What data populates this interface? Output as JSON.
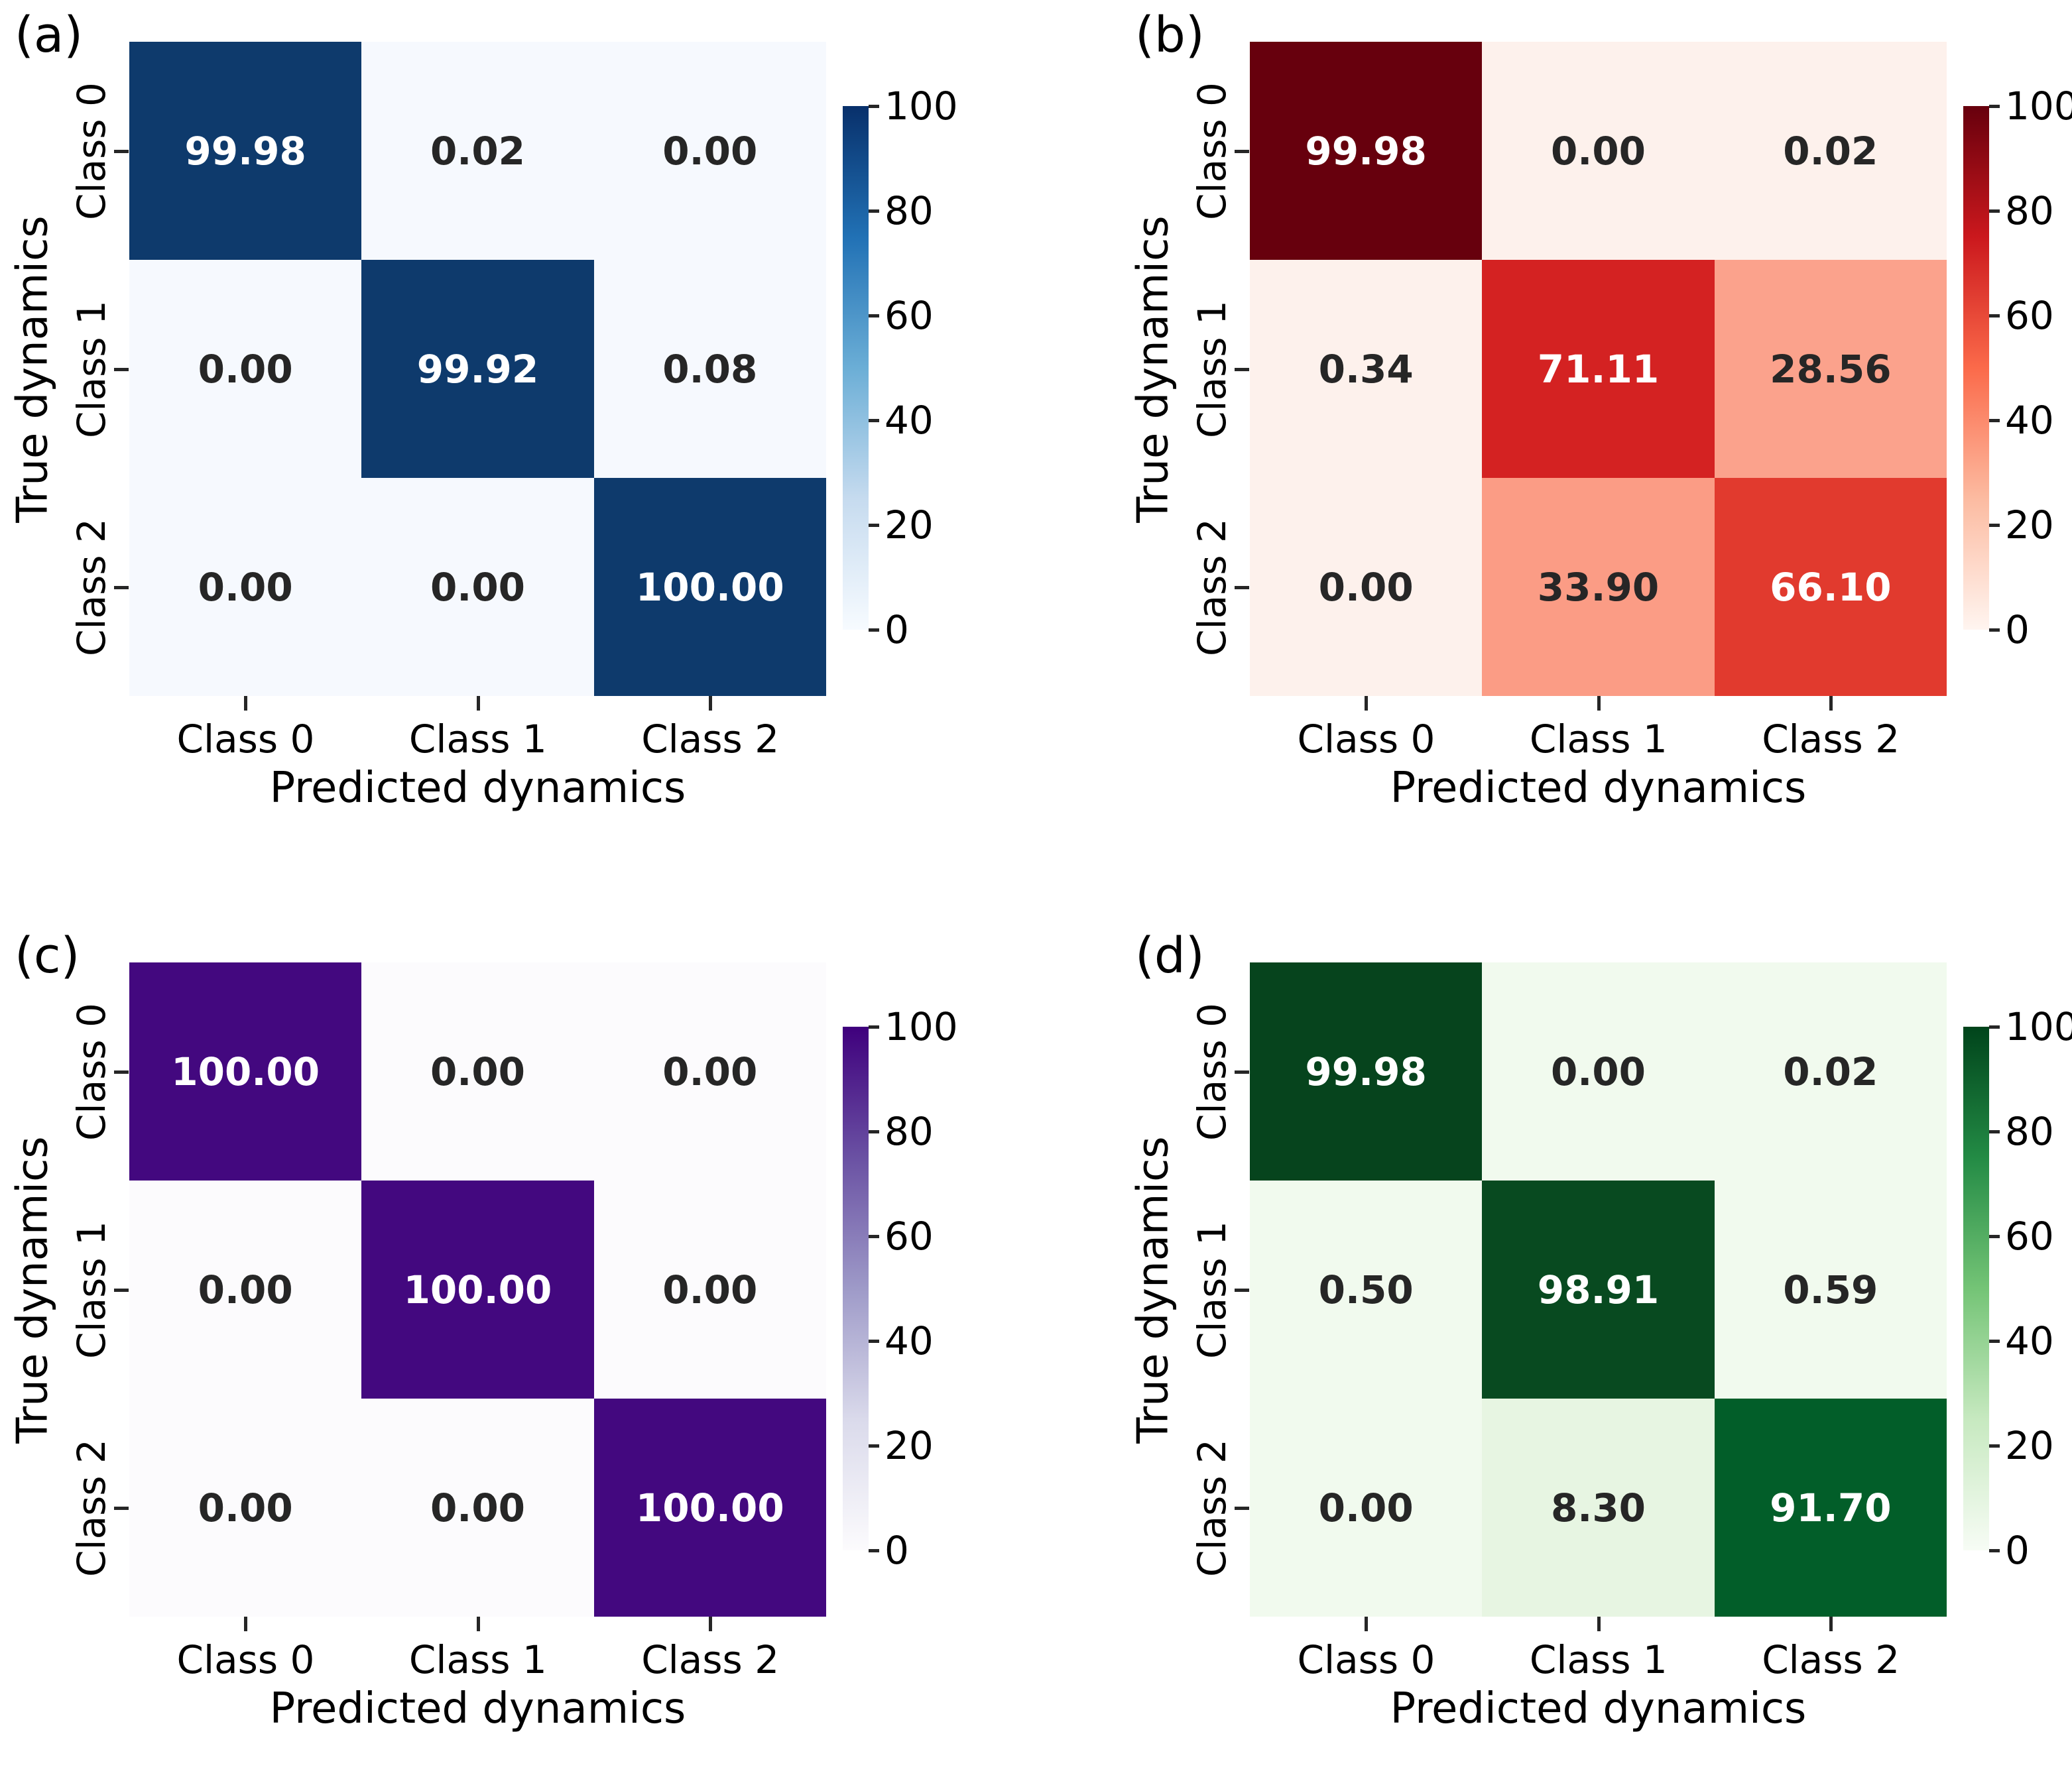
{
  "figure": {
    "background": "#ffffff",
    "text_color": "#000000",
    "dark_value_text": "#262626",
    "light_value_text": "#ffffff",
    "white_text_threshold": 60
  },
  "chart_data": [
    {
      "type": "heatmap",
      "panel_label": "(a)",
      "colormap": "Blues",
      "title": "",
      "xlabel": "Predicted dynamics",
      "ylabel": "True dynamics",
      "x_ticks": [
        "Class 0",
        "Class 1",
        "Class 2"
      ],
      "y_ticks": [
        "Class 0",
        "Class 1",
        "Class 2"
      ],
      "values": [
        [
          99.98,
          0.02,
          0.0
        ],
        [
          0.0,
          99.92,
          0.08
        ],
        [
          0.0,
          0.0,
          100.0
        ]
      ],
      "cell_colors": [
        [
          "#0e3a6c",
          "#f6f9fe",
          "#f6f9fe"
        ],
        [
          "#f6f9fe",
          "#0e3a6c",
          "#f6f9fe"
        ],
        [
          "#f6f9fe",
          "#f6f9fe",
          "#0e3a6c"
        ]
      ],
      "colorbar": {
        "ticks": [
          "100",
          "80",
          "60",
          "40",
          "20",
          "0"
        ],
        "range": [
          0,
          100
        ],
        "gradient_top_to_bottom": [
          "#08306b",
          "#2171b5",
          "#6baed6",
          "#c6dbef",
          "#f7fbff"
        ]
      }
    },
    {
      "type": "heatmap",
      "panel_label": "(b)",
      "colormap": "Reds",
      "title": "",
      "xlabel": "Predicted dynamics",
      "ylabel": "True dynamics",
      "x_ticks": [
        "Class 0",
        "Class 1",
        "Class 2"
      ],
      "y_ticks": [
        "Class 0",
        "Class 1",
        "Class 2"
      ],
      "values": [
        [
          99.98,
          0.0,
          0.02
        ],
        [
          0.34,
          71.11,
          28.56
        ],
        [
          0.0,
          33.9,
          66.1
        ]
      ],
      "cell_colors": [
        [
          "#67000d",
          "#fdf1ec",
          "#fdf1ec"
        ],
        [
          "#fdf1ec",
          "#d42222",
          "#fba28c"
        ],
        [
          "#fdf1ec",
          "#fb9c85",
          "#e13a2e"
        ]
      ],
      "colorbar": {
        "ticks": [
          "100",
          "80",
          "60",
          "40",
          "20",
          "0"
        ],
        "range": [
          0,
          100
        ],
        "gradient_top_to_bottom": [
          "#67000d",
          "#cb181d",
          "#fb6a4a",
          "#fcbba1",
          "#fff5f0"
        ]
      }
    },
    {
      "type": "heatmap",
      "panel_label": "(c)",
      "colormap": "Purples",
      "title": "",
      "xlabel": "Predicted dynamics",
      "ylabel": "True dynamics",
      "x_ticks": [
        "Class 0",
        "Class 1",
        "Class 2"
      ],
      "y_ticks": [
        "Class 0",
        "Class 1",
        "Class 2"
      ],
      "values": [
        [
          100.0,
          0.0,
          0.0
        ],
        [
          0.0,
          100.0,
          0.0
        ],
        [
          0.0,
          0.0,
          100.0
        ]
      ],
      "cell_colors": [
        [
          "#43087f",
          "#fcfbfd",
          "#fcfbfd"
        ],
        [
          "#fcfbfd",
          "#43087f",
          "#fcfbfd"
        ],
        [
          "#fcfbfd",
          "#fcfbfd",
          "#43087f"
        ]
      ],
      "colorbar": {
        "ticks": [
          "100",
          "80",
          "60",
          "40",
          "20",
          "0"
        ],
        "range": [
          0,
          100
        ],
        "gradient_top_to_bottom": [
          "#3f007d",
          "#6a51a3",
          "#9e9ac8",
          "#dadaeb",
          "#fcfbfd"
        ]
      }
    },
    {
      "type": "heatmap",
      "panel_label": "(d)",
      "colormap": "Greens",
      "title": "",
      "xlabel": "Predicted dynamics",
      "ylabel": "True dynamics",
      "x_ticks": [
        "Class 0",
        "Class 1",
        "Class 2"
      ],
      "y_ticks": [
        "Class 0",
        "Class 1",
        "Class 2"
      ],
      "values": [
        [
          99.98,
          0.0,
          0.02
        ],
        [
          0.5,
          98.91,
          0.59
        ],
        [
          0.0,
          8.3,
          91.7
        ]
      ],
      "cell_colors": [
        [
          "#06441d",
          "#f1faee",
          "#f1faee"
        ],
        [
          "#f1faee",
          "#084a20",
          "#f1faee"
        ],
        [
          "#f1faee",
          "#e7f5e2",
          "#025e29"
        ]
      ],
      "colorbar": {
        "ticks": [
          "100",
          "80",
          "60",
          "40",
          "20",
          "0"
        ],
        "range": [
          0,
          100
        ],
        "gradient_top_to_bottom": [
          "#00441b",
          "#238b45",
          "#74c476",
          "#c7e9c0",
          "#f7fcf5"
        ]
      }
    }
  ]
}
